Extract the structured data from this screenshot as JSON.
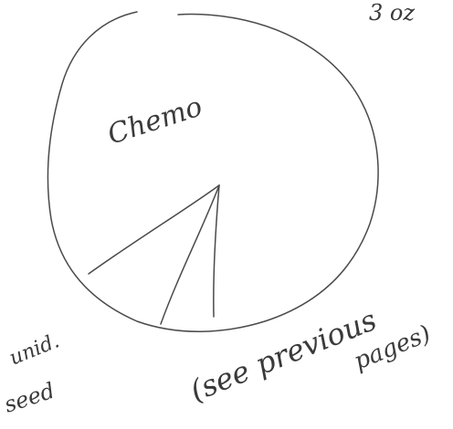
{
  "chart_data": {
    "type": "pie",
    "labels": [
      "Chemo",
      "unid. seed",
      "(see previous pages)"
    ],
    "corner_note": "3 oz",
    "ink_color": "#4a4a4a"
  }
}
